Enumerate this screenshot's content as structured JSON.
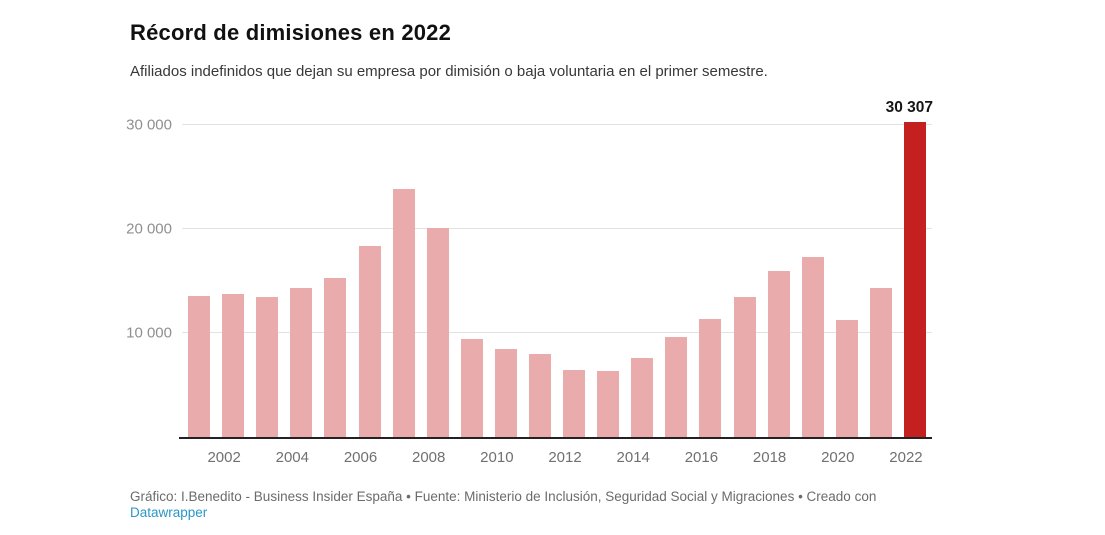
{
  "header": {
    "title": "Récord de dimisiones en 2022",
    "subtitle": "Afiliados indefinidos que dejan su empresa por dimisión o baja voluntaria en el primer semestre."
  },
  "chart_data": {
    "type": "bar",
    "title": "Récord de dimisiones en 2022",
    "xlabel": "",
    "ylabel": "",
    "ylim": [
      0,
      31500
    ],
    "grid": true,
    "categories": [
      "2001",
      "2002",
      "2003",
      "2004",
      "2005",
      "2006",
      "2007",
      "2008",
      "2009",
      "2010",
      "2011",
      "2012",
      "2013",
      "2014",
      "2015",
      "2016",
      "2017",
      "2018",
      "2019",
      "2020",
      "2021",
      "2022"
    ],
    "values": [
      13600,
      13750,
      13500,
      14300,
      15250,
      18350,
      23850,
      20100,
      9450,
      8450,
      7950,
      6450,
      6300,
      7600,
      9650,
      11350,
      13500,
      16000,
      17350,
      11250,
      14300,
      30307
    ],
    "highlight_category": "2022",
    "highlight_value": 30307,
    "highlight_label": "30 307",
    "y_ticks": [
      {
        "value": 10000,
        "label": "10 000"
      },
      {
        "value": 20000,
        "label": "20 000"
      },
      {
        "value": 30000,
        "label": "30 000"
      }
    ],
    "x_tick_labels": [
      "2002",
      "2004",
      "2006",
      "2008",
      "2010",
      "2012",
      "2014",
      "2016",
      "2018",
      "2020",
      "2022"
    ]
  },
  "footer": {
    "credit": "Gráfico: I.Benedito - Business Insider España • Fuente: Ministerio de Inclusión, Seguridad Social y Migraciones • Creado con",
    "link_label": "Datawrapper"
  },
  "colors": {
    "bar": "#e9abab",
    "highlight": "#c52020",
    "grid": "#e2e2e2",
    "axis": "#222222",
    "y_tick": "#8f8f8f",
    "x_tick": "#707070",
    "title": "#111111",
    "subtitle": "#383838",
    "value_label": "#161616",
    "footer": "#6b6b6b",
    "link": "#2a96c8"
  }
}
